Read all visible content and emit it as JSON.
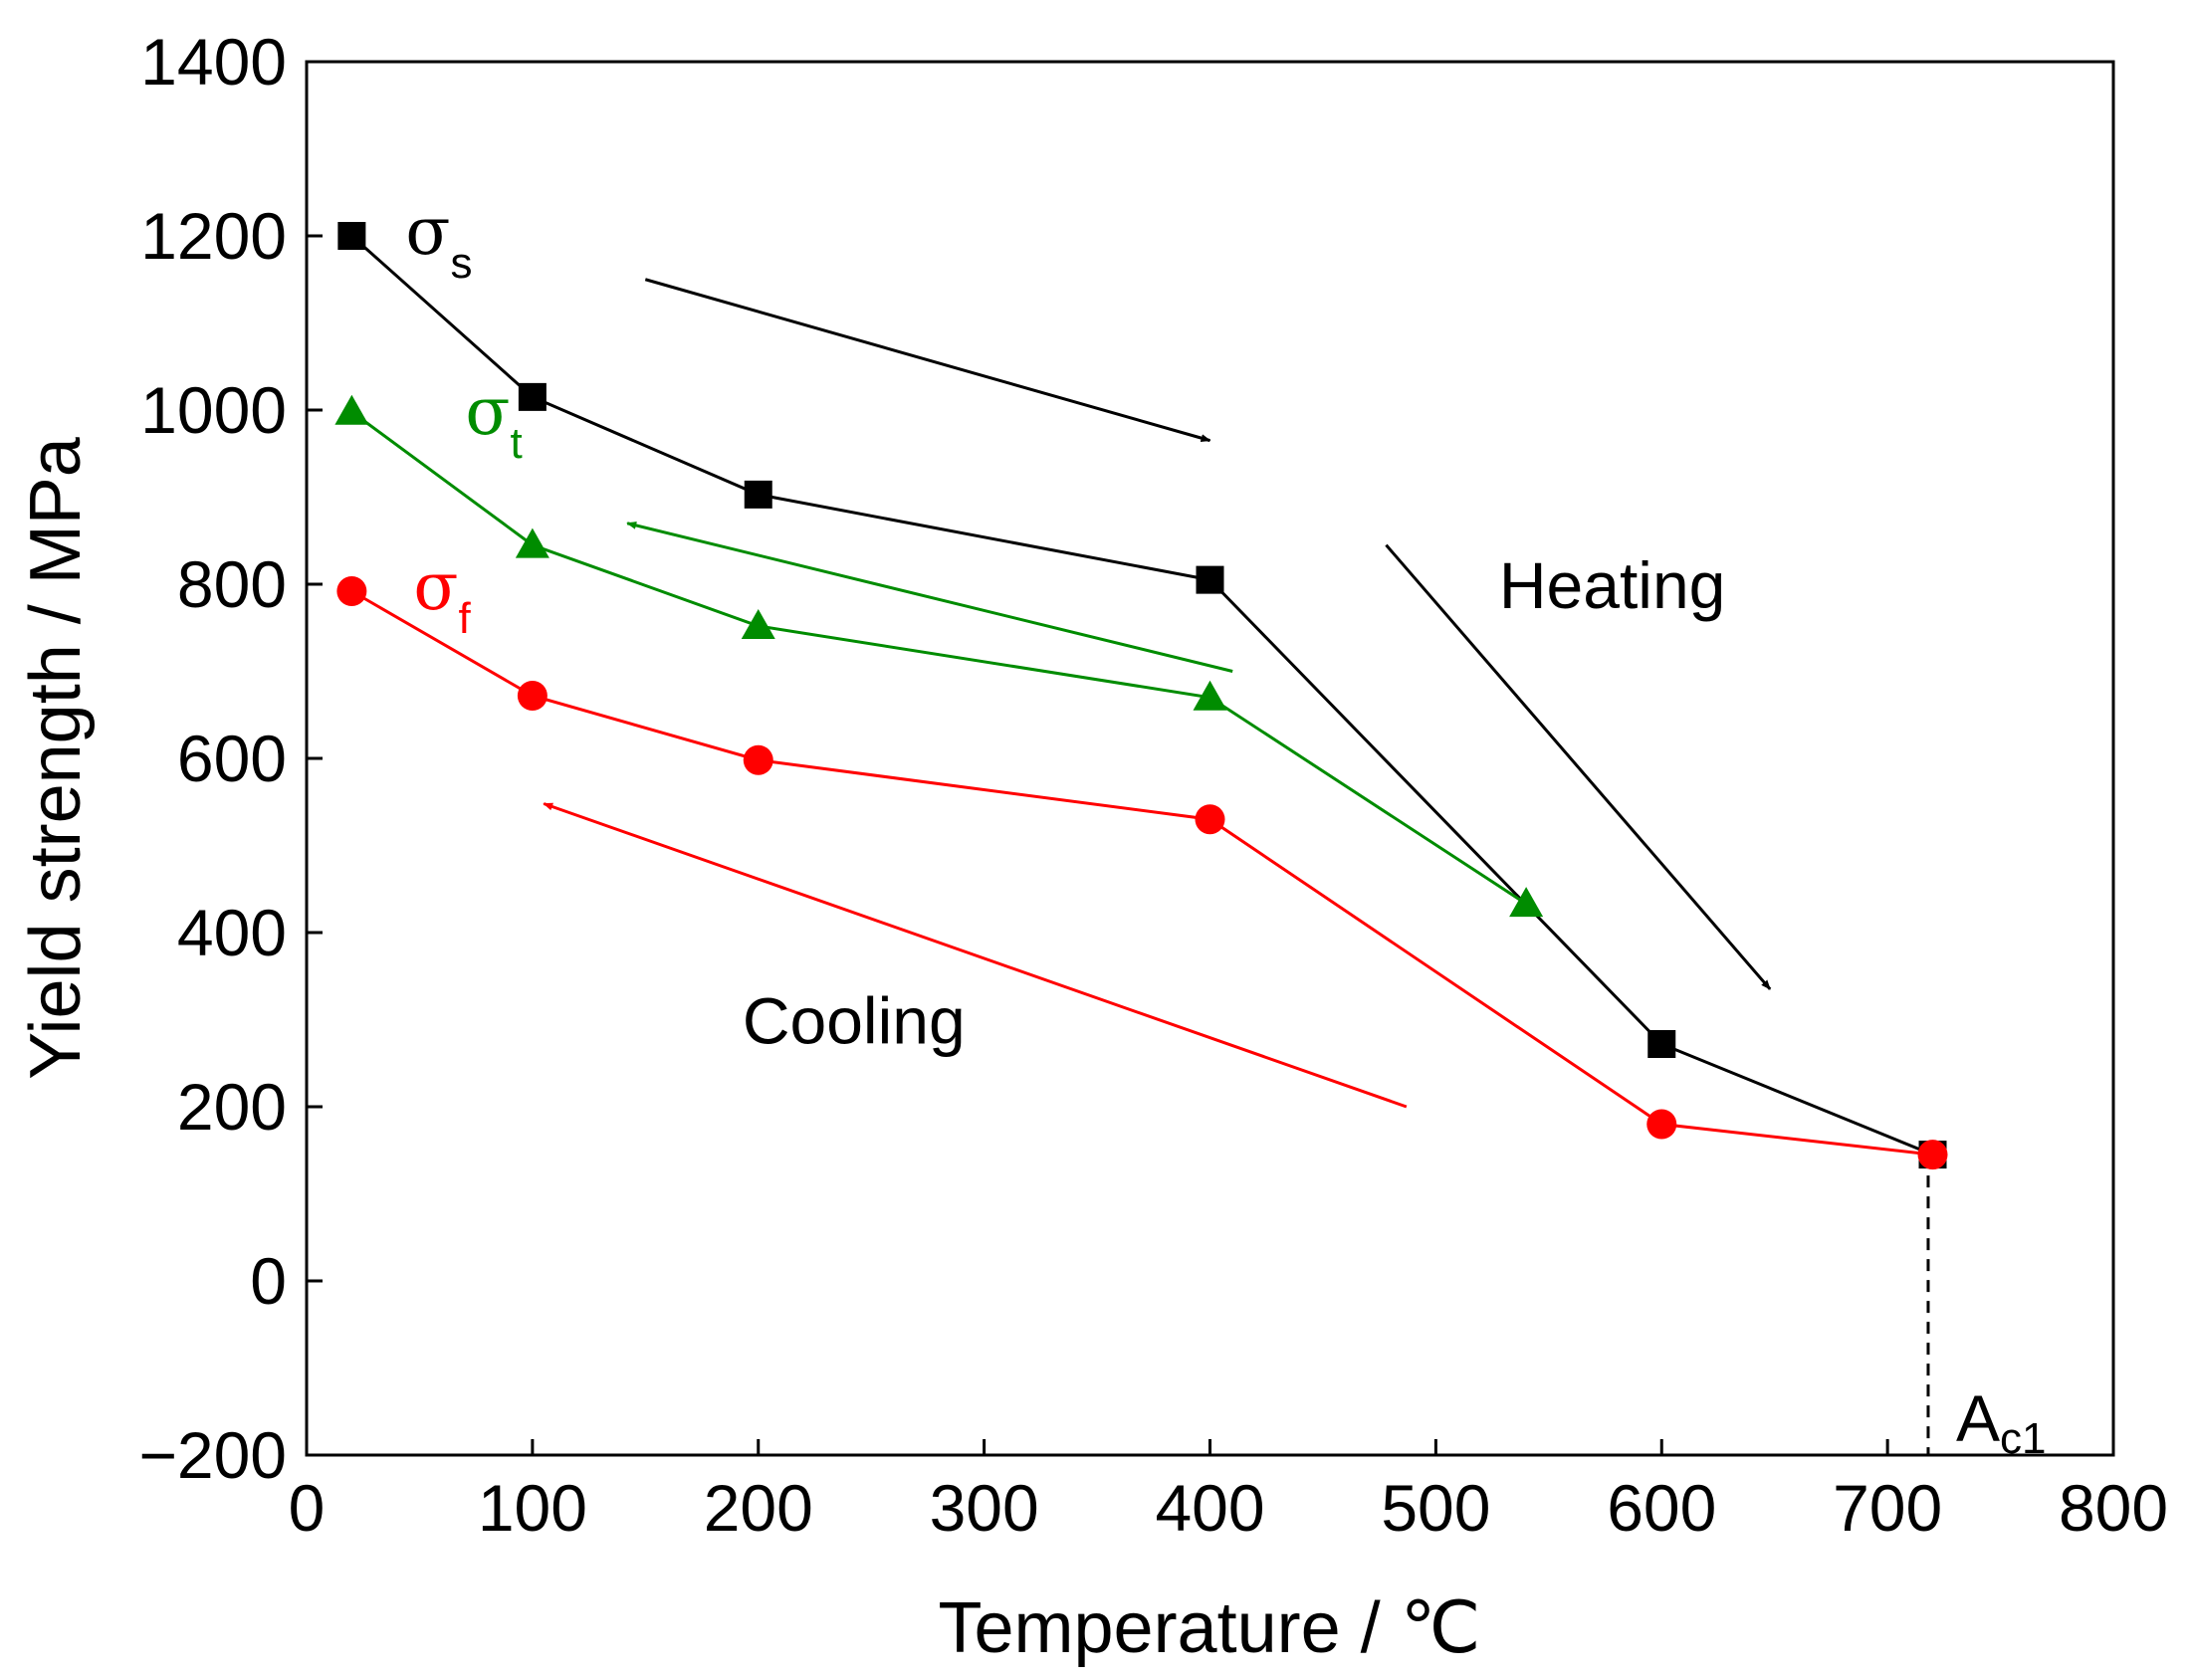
{
  "chart_data": {
    "type": "line",
    "title": "",
    "xlabel": "Temperature / ℃",
    "ylabel": "Yield strength / MPa",
    "xlim": [
      0,
      800
    ],
    "ylim": [
      -200,
      1400
    ],
    "xticks": [
      0,
      100,
      200,
      300,
      400,
      500,
      600,
      700,
      800
    ],
    "yticks": [
      -200,
      0,
      200,
      400,
      600,
      800,
      1000,
      1200,
      1400
    ],
    "ytick_labels": [
      "−200",
      "0",
      "200",
      "400",
      "600",
      "800",
      "1000",
      "1200",
      "1400"
    ],
    "grid": false,
    "series": [
      {
        "name": "σs",
        "symbol": "σ",
        "subscript": "s",
        "color": "#000000",
        "marker": "square",
        "x": [
          20,
          100,
          200,
          400,
          600,
          720
        ],
        "y": [
          1200,
          1015,
          903,
          805,
          272,
          145
        ]
      },
      {
        "name": "σt",
        "symbol": "σ",
        "subscript": "t",
        "color": "#008c00",
        "marker": "triangle",
        "x": [
          20,
          100,
          200,
          400,
          540
        ],
        "y": [
          998,
          845,
          752,
          670,
          433
        ]
      },
      {
        "name": "σf",
        "symbol": "σ",
        "subscript": "f",
        "color": "#ff0000",
        "marker": "circle",
        "x": [
          20,
          100,
          200,
          400,
          600,
          720
        ],
        "y": [
          792,
          672,
          598,
          530,
          180,
          145
        ]
      }
    ],
    "arrows": [
      {
        "name": "heating-arrow-upper",
        "color": "#000000",
        "from": [
          150,
          1150
        ],
        "to": [
          400,
          965
        ]
      },
      {
        "name": "heating-arrow-lower",
        "color": "#000000",
        "from": [
          478,
          845
        ],
        "to": [
          648,
          335
        ]
      },
      {
        "name": "cooling-arrow-green",
        "color": "#008c00",
        "from": [
          410,
          700
        ],
        "to": [
          142,
          870
        ]
      },
      {
        "name": "cooling-arrow-red",
        "color": "#ff0000",
        "from": [
          487,
          200
        ],
        "to": [
          105,
          548
        ]
      }
    ],
    "reference_line": {
      "x": 718,
      "y_top": 145,
      "label": "A",
      "label_sub": "c1"
    },
    "annotations": [
      {
        "name": "heating-label",
        "text": "Heating",
        "x": 528,
        "y": 800
      },
      {
        "name": "cooling-label",
        "text": "Cooling",
        "x": 193,
        "y": 300
      }
    ]
  }
}
